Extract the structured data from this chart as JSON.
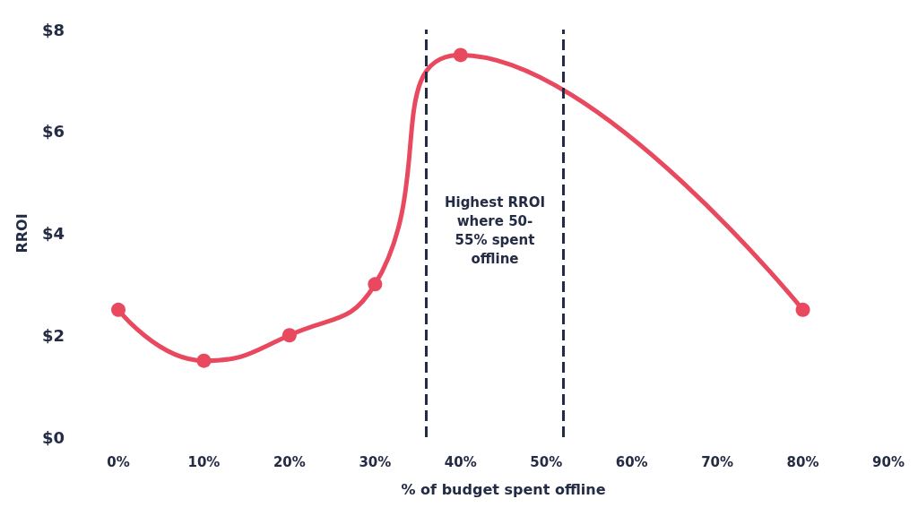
{
  "chart_data": {
    "type": "line",
    "xlabel": "% of budget spent offline",
    "ylabel": "RROI",
    "x": [
      0,
      10,
      20,
      30,
      40,
      80
    ],
    "series": [
      {
        "color": "#e8495f",
        "values": [
          2.5,
          1.5,
          2,
          3,
          7.5,
          2.5
        ]
      }
    ],
    "xticks": [
      {
        "value": 0,
        "label": "0%"
      },
      {
        "value": 10,
        "label": "10%"
      },
      {
        "value": 20,
        "label": "20%"
      },
      {
        "value": 30,
        "label": "30%"
      },
      {
        "value": 40,
        "label": "40%"
      },
      {
        "value": 50,
        "label": "50%"
      },
      {
        "value": 60,
        "label": "60%"
      },
      {
        "value": 70,
        "label": "70%"
      },
      {
        "value": 80,
        "label": "80%"
      },
      {
        "value": 90,
        "label": "90%"
      }
    ],
    "xlim": [
      0,
      90
    ],
    "ylim": [
      0,
      8
    ],
    "yticks": [
      {
        "value": 0,
        "label": "$0"
      },
      {
        "value": 2,
        "label": "$2"
      },
      {
        "value": 4,
        "label": "$4"
      },
      {
        "value": 6,
        "label": "$6"
      },
      {
        "value": 8,
        "label": "$8"
      }
    ],
    "ref_lines": [
      {
        "axis": "x",
        "value": 36,
        "color": "#232b45",
        "line_style": "dashed"
      },
      {
        "axis": "x",
        "value": 52,
        "color": "#232b45",
        "line_style": "dashed"
      }
    ],
    "annotations": [
      "Highest RROI\nwhere 50-\n55% spent\noffline"
    ],
    "grid": false,
    "marker": "circle",
    "line_style": "solid"
  }
}
